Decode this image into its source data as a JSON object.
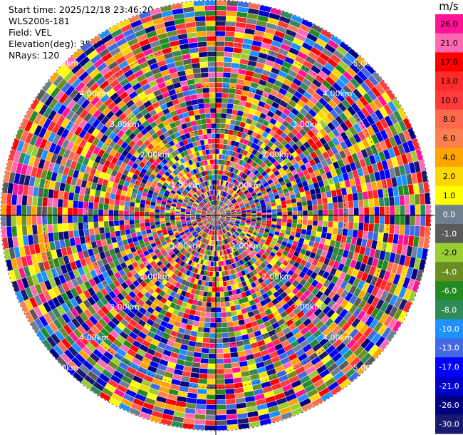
{
  "header": {
    "start_time": "Start time: 2025/12/18 23:46:20",
    "site": "WLS200s-181",
    "field": "Field: VEL",
    "elevation": "Elevation(deg): 35.00",
    "nrays": "NRays: 120"
  },
  "colorbar": {
    "unit": "m/s",
    "ticks": [
      "26.0",
      "21.0",
      "17.0",
      "13.0",
      "10.0",
      "8.0",
      "6.0",
      "4.0",
      "2.0",
      "1.0",
      "0.0",
      "-1.0",
      "-2.0",
      "-4.0",
      "-6.0",
      "-8.0",
      "-10.0",
      "-13.0",
      "-17.0",
      "-21.0",
      "-26.0",
      "-30.0"
    ],
    "colors": [
      "#ff1493",
      "#ff69b4",
      "#ff0000",
      "#ff2a2a",
      "#ff3b3b",
      "#ff6a4d",
      "#ff7f50",
      "#ffa500",
      "#ffd700",
      "#ffff00",
      "#708090",
      "#5a5a5a",
      "#9acd32",
      "#6b8e23",
      "#228b22",
      "#2e8b57",
      "#1e90ff",
      "#4169e1",
      "#0000ff",
      "#0000cd",
      "#000080",
      "#191970"
    ]
  },
  "chart_data": {
    "type": "heatmap",
    "subtype": "polar-ppi",
    "field": "VEL",
    "unit": "m/s",
    "nrays": 120,
    "elevation_deg": 35.0,
    "ring_labels": [
      "1.00km",
      "2.00km",
      "3.00km",
      "4.00km",
      "5.00km"
    ]
  }
}
